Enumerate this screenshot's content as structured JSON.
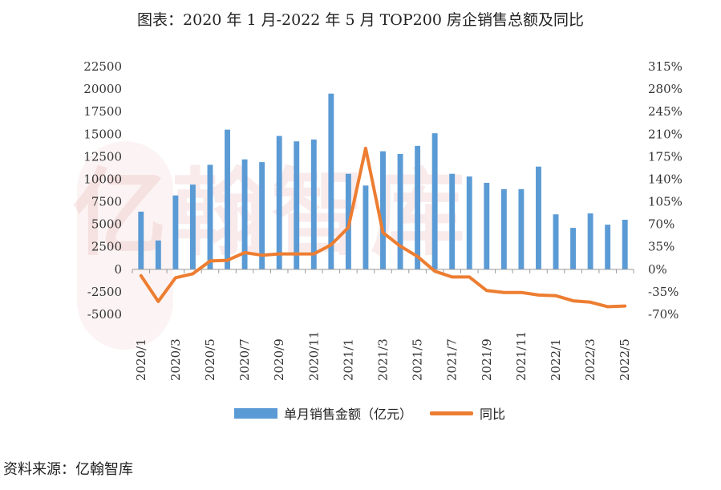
{
  "title": "图表：2020 年 1 月-2022 年 5 月 TOP200 房企销售总额及同比",
  "watermark": "亿翰智库",
  "source": "资料来源：亿翰智库",
  "colors": {
    "bar": "#5b9bd5",
    "line": "#ed7d31"
  },
  "chart_data": {
    "type": "bar",
    "categories": [
      "2020/1",
      "2020/2",
      "2020/3",
      "2020/4",
      "2020/5",
      "2020/6",
      "2020/7",
      "2020/8",
      "2020/9",
      "2020/10",
      "2020/11",
      "2020/12",
      "2021/1",
      "2021/2",
      "2021/3",
      "2021/4",
      "2021/5",
      "2021/6",
      "2021/7",
      "2021/8",
      "2021/9",
      "2021/10",
      "2021/11",
      "2021/12",
      "2022/1",
      "2022/2",
      "2022/3",
      "2022/4",
      "2022/5"
    ],
    "x_tick_labels": [
      "2020/1",
      "2020/3",
      "2020/5",
      "2020/7",
      "2020/9",
      "2020/11",
      "2021/1",
      "2021/3",
      "2021/5",
      "2021/7",
      "2021/9",
      "2021/11",
      "2022/1",
      "2022/3",
      "2022/5"
    ],
    "series": [
      {
        "name": "单月销售金额（亿元）",
        "type": "bar",
        "axis": "left",
        "values": [
          6400,
          3200,
          8200,
          9400,
          11600,
          15500,
          12200,
          11900,
          14800,
          14200,
          14400,
          19500,
          10600,
          9300,
          13100,
          12800,
          13700,
          15100,
          10600,
          10300,
          9600,
          8900,
          8900,
          11400,
          6100,
          4600,
          6200,
          4950,
          5500
        ]
      },
      {
        "name": "同比",
        "type": "line",
        "axis": "right",
        "values": [
          -0.1,
          -0.5,
          -0.13,
          -0.07,
          0.13,
          0.14,
          0.26,
          0.22,
          0.24,
          0.24,
          0.24,
          0.38,
          0.65,
          1.88,
          0.57,
          0.36,
          0.2,
          -0.03,
          -0.12,
          -0.12,
          -0.33,
          -0.36,
          -0.36,
          -0.4,
          -0.41,
          -0.49,
          -0.51,
          -0.58,
          -0.57
        ]
      }
    ],
    "left_axis": {
      "ticks": [
        "22500",
        "20000",
        "17500",
        "15000",
        "12500",
        "10000",
        "7500",
        "5000",
        "2500",
        "0",
        "-2500",
        "-5000"
      ],
      "ylim": [
        -5000,
        22500
      ]
    },
    "right_axis": {
      "ticks": [
        "315%",
        "280%",
        "245%",
        "210%",
        "175%",
        "140%",
        "105%",
        "70%",
        "35%",
        "0%",
        "-35%",
        "-70%"
      ],
      "ylim": [
        -0.7,
        3.15
      ]
    },
    "legend_position": "bottom",
    "grid": false
  }
}
